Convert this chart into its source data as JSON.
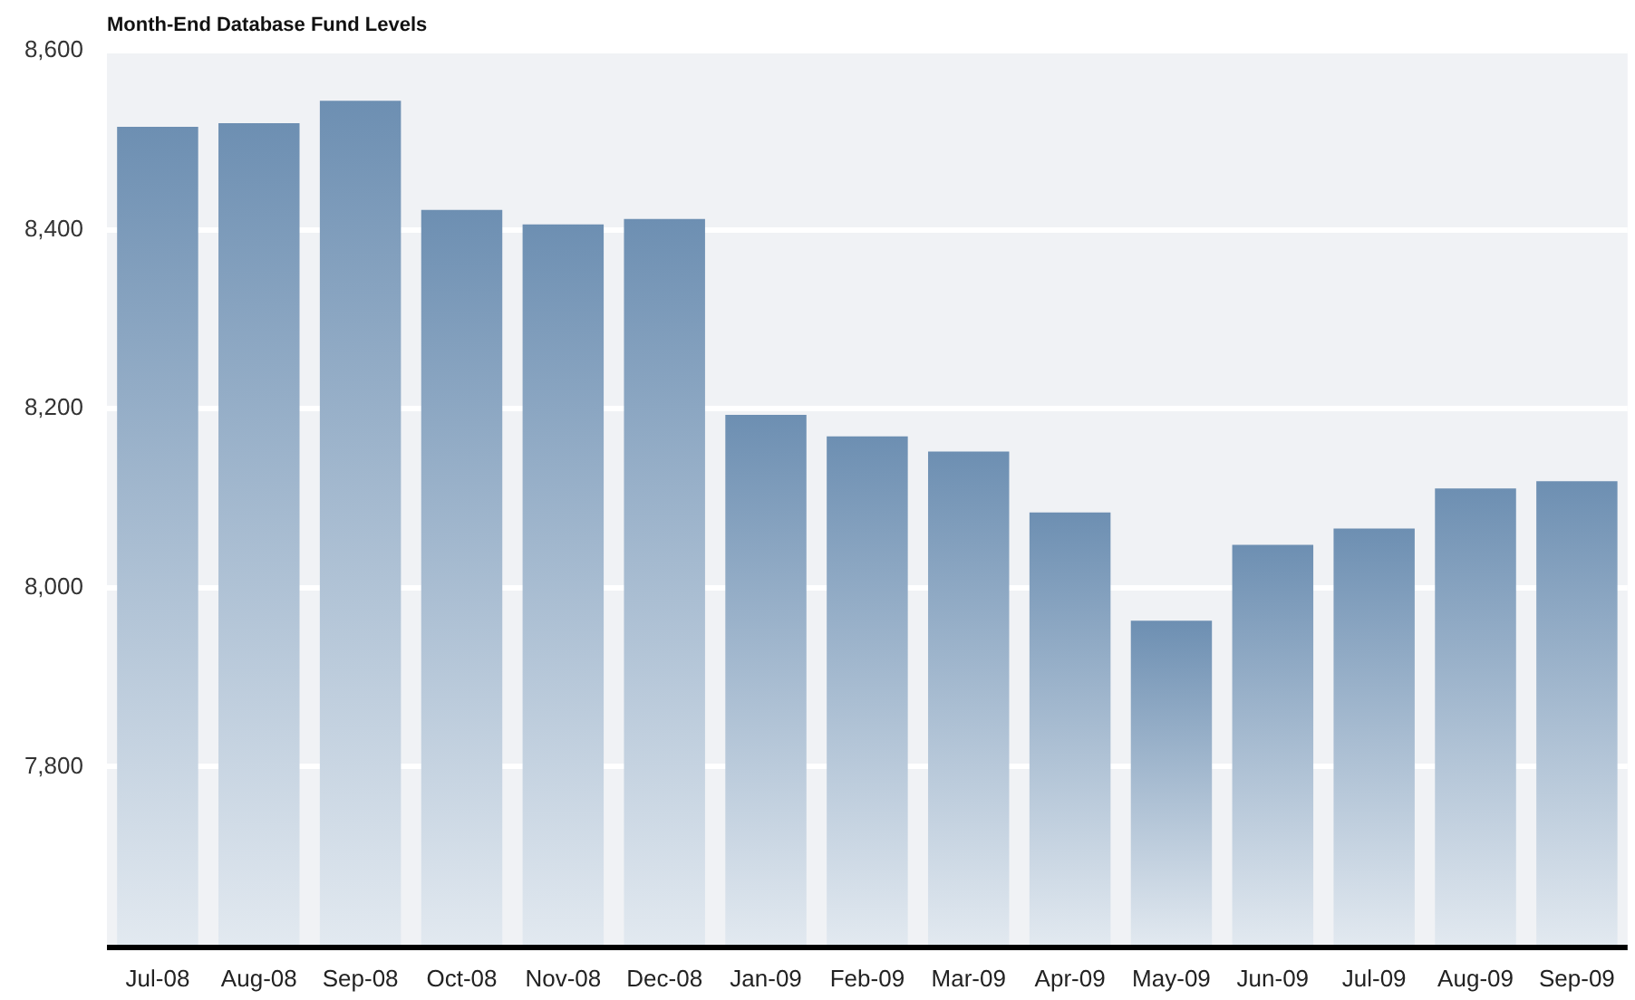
{
  "chart_data": {
    "type": "bar",
    "title": "Month-End Database Fund Levels",
    "categories": [
      "Jul-08",
      "Aug-08",
      "Sep-08",
      "Oct-08",
      "Nov-08",
      "Dec-08",
      "Jan-09",
      "Feb-09",
      "Mar-09",
      "Apr-09",
      "May-09",
      "Jun-09",
      "Jul-09",
      "Aug-09",
      "Sep-09"
    ],
    "values": [
      8515,
      8519,
      8544,
      8422,
      8406,
      8412,
      8193,
      8169,
      8152,
      8084,
      7963,
      8048,
      8066,
      8111,
      8119
    ],
    "color": "#6d8fb2",
    "ylim": [
      7600,
      8600
    ],
    "yticks": [
      {
        "value": 7800,
        "label": "7,800"
      },
      {
        "value": 8000,
        "label": "8,000"
      },
      {
        "value": 8200,
        "label": "8,200"
      },
      {
        "value": 8400,
        "label": "8,400"
      },
      {
        "value": 8600,
        "label": "8,600"
      }
    ],
    "grid": "y"
  }
}
